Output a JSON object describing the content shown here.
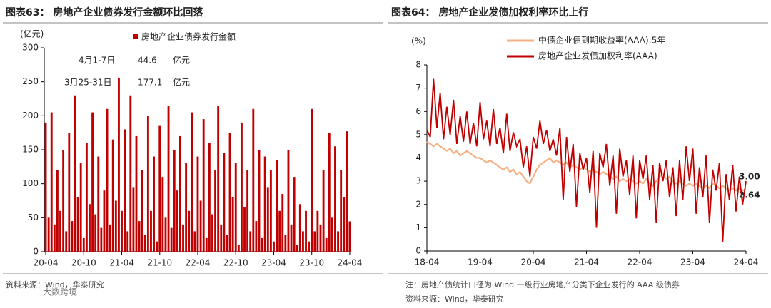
{
  "charts_header": null,
  "chart_data": [
    {
      "type": "bar",
      "title": "图表63： 房地产企业债券发行金额环比回落",
      "y_label": "(亿元)",
      "source": "资料来源：Wind，华泰研究",
      "annotations": [
        {
          "date": "4月1-7日",
          "amount": "44.6",
          "unit": "亿元"
        },
        {
          "date": "3月25-31日",
          "amount": "177.1",
          "unit": "亿元"
        }
      ],
      "categories": [
        "20-04",
        null,
        null,
        null,
        null,
        null,
        null,
        null,
        null,
        null,
        null,
        null,
        null,
        "20-10",
        null,
        null,
        null,
        null,
        null,
        null,
        null,
        null,
        null,
        null,
        null,
        null,
        "21-04",
        null,
        null,
        null,
        null,
        null,
        null,
        null,
        null,
        null,
        null,
        null,
        null,
        "21-10",
        null,
        null,
        null,
        null,
        null,
        null,
        null,
        null,
        null,
        null,
        null,
        null,
        "22-04",
        null,
        null,
        null,
        null,
        null,
        null,
        null,
        null,
        null,
        null,
        null,
        null,
        "22-10",
        null,
        null,
        null,
        null,
        null,
        null,
        null,
        null,
        null,
        null,
        null,
        null,
        "23-04",
        null,
        null,
        null,
        null,
        null,
        null,
        null,
        null,
        null,
        null,
        null,
        null,
        "23-10",
        null,
        null,
        null,
        null,
        null,
        null,
        null,
        null,
        null,
        null,
        null,
        null,
        "24-04"
      ],
      "series": [
        {
          "name": "房地产企业债券发行金额",
          "color": "#c00000",
          "values": [
            190,
            50,
            205,
            40,
            120,
            60,
            150,
            30,
            175,
            45,
            230,
            80,
            130,
            20,
            160,
            70,
            205,
            55,
            140,
            35,
            90,
            210,
            40,
            165,
            75,
            255,
            60,
            180,
            30,
            230,
            95,
            170,
            45,
            120,
            25,
            200,
            60,
            140,
            15,
            185,
            110,
            50,
            215,
            35,
            150,
            90,
            170,
            40,
            130,
            60,
            205,
            30,
            140,
            75,
            195,
            20,
            160,
            55,
            120,
            215,
            40,
            145,
            25,
            175,
            80,
            130,
            10,
            190,
            65,
            120,
            30,
            210,
            45,
            150,
            20,
            140,
            95,
            120,
            15,
            135,
            60,
            85,
            25,
            150,
            40,
            110,
            10,
            70,
            30,
            60,
            15,
            210,
            30,
            60,
            40,
            120,
            20,
            175,
            50,
            155,
            30,
            120,
            80,
            177.1,
            44.6
          ]
        }
      ],
      "ylim": [
        0,
        300
      ],
      "yticks": [
        0,
        50,
        100,
        150,
        200,
        250,
        300
      ],
      "grid": false,
      "legend": "top"
    },
    {
      "type": "line",
      "title": "图表64： 房地产企业发债加权利率环比上行",
      "y_label": "(%)",
      "notes": [
        "注：房地产债统计口径为 Wind 一级行业房地产分类下企业发行的 AAA 级债券",
        "资料来源：Wind，华泰研究"
      ],
      "watermark": "大数跨境",
      "categories": [
        "18-04",
        null,
        null,
        null,
        null,
        null,
        null,
        null,
        null,
        null,
        null,
        null,
        null,
        null,
        null,
        null,
        "19-04",
        null,
        null,
        null,
        null,
        null,
        null,
        null,
        null,
        null,
        null,
        null,
        null,
        null,
        null,
        null,
        "20-04",
        null,
        null,
        null,
        null,
        null,
        null,
        null,
        null,
        null,
        null,
        null,
        null,
        null,
        null,
        null,
        "21-04",
        null,
        null,
        null,
        null,
        null,
        null,
        null,
        null,
        null,
        null,
        null,
        null,
        null,
        null,
        null,
        "22-04",
        null,
        null,
        null,
        null,
        null,
        null,
        null,
        null,
        null,
        null,
        null,
        null,
        null,
        null,
        null,
        "23-04",
        null,
        null,
        null,
        null,
        null,
        null,
        null,
        null,
        null,
        null,
        null,
        null,
        null,
        null,
        null,
        "24-04"
      ],
      "series": [
        {
          "name": "中债企业债到期收益率(AAA):5年",
          "color": "#f4b183",
          "end_label": "2.64",
          "values": [
            4.7,
            4.6,
            4.5,
            4.6,
            4.5,
            4.4,
            4.3,
            4.4,
            4.2,
            4.3,
            4.1,
            4.2,
            4.3,
            4.2,
            4.1,
            4.0,
            4.0,
            3.9,
            3.8,
            3.9,
            3.8,
            3.7,
            3.6,
            3.5,
            3.6,
            3.4,
            3.5,
            3.3,
            3.4,
            3.2,
            3.0,
            2.9,
            3.2,
            3.5,
            3.7,
            3.8,
            3.9,
            4.0,
            3.8,
            3.9,
            3.8,
            3.7,
            3.8,
            3.6,
            3.7,
            3.6,
            3.5,
            3.6,
            3.5,
            3.4,
            3.5,
            3.4,
            3.3,
            3.4,
            3.3,
            3.2,
            3.1,
            3.2,
            3.0,
            3.1,
            3.0,
            3.1,
            3.0,
            2.9,
            3.0,
            2.9,
            3.1,
            2.9,
            2.8,
            3.0,
            3.2,
            3.3,
            3.1,
            3.2,
            3.0,
            2.9,
            3.0,
            2.9,
            2.8,
            2.9,
            2.8,
            2.9,
            2.8,
            2.7,
            2.8,
            2.7,
            2.9,
            2.8,
            2.7,
            2.8,
            2.7,
            2.6,
            2.7,
            2.6,
            2.7,
            2.6,
            2.64
          ]
        },
        {
          "name": "房地产企业发债加权利率(AAA)",
          "color": "#c00000",
          "end_label": "3.00",
          "values": [
            5.2,
            4.9,
            7.4,
            5.3,
            6.8,
            4.8,
            6.2,
            5.0,
            6.5,
            4.6,
            5.8,
            4.7,
            6.0,
            4.6,
            5.5,
            4.5,
            6.4,
            4.8,
            5.6,
            4.5,
            6.1,
            4.6,
            5.3,
            4.2,
            5.9,
            4.3,
            5.1,
            4.5,
            4.8,
            3.6,
            4.5,
            3.2,
            4.9,
            4.4,
            5.6,
            4.6,
            5.2,
            4.3,
            4.8,
            4.1,
            5.3,
            2.2,
            4.9,
            3.4,
            4.6,
            1.9,
            4.2,
            3.5,
            4.0,
            2.5,
            4.3,
            1.0,
            4.2,
            3.6,
            4.6,
            2.8,
            4.1,
            1.6,
            4.4,
            3.2,
            3.9,
            2.4,
            4.1,
            1.4,
            3.9,
            3.1,
            4.1,
            2.2,
            3.7,
            1.2,
            3.8,
            3.0,
            3.9,
            2.3,
            3.6,
            1.5,
            3.9,
            2.2,
            4.5,
            3.0,
            4.4,
            1.6,
            3.6,
            2.3,
            4.1,
            1.2,
            3.5,
            2.6,
            3.8,
            0.4,
            3.3,
            2.2,
            3.7,
            1.7,
            3.2,
            2.0,
            3.0
          ]
        }
      ],
      "ylim": [
        0,
        8
      ],
      "yticks": [
        0,
        1,
        2,
        3,
        4,
        5,
        6,
        7,
        8
      ],
      "grid": false,
      "legend": "top-left"
    }
  ]
}
